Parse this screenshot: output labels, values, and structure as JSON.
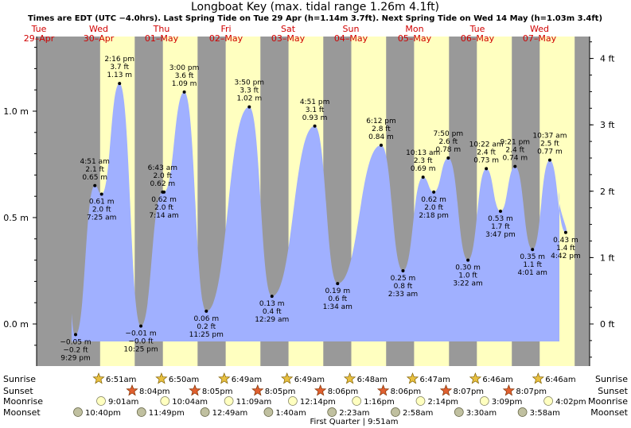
{
  "chart_data": {
    "type": "area",
    "title": "Longboat Key (max. tidal range 1.26m 4.1ft)",
    "subtitle": "Times are EDT (UTC −4.0hrs). Last Spring Tide on Tue 29 Apr (h=1.14m 3.7ft). Next Spring Tide on Wed 14 May (h=1.03m 3.4ft)",
    "y_left_ticks": [
      "0.0 m",
      "0.5 m",
      "1.0 m"
    ],
    "y_right_ticks": [
      "0 ft",
      "1 ft",
      "2 ft",
      "3 ft",
      "4 ft"
    ],
    "ylim_m": [
      -0.2,
      1.31
    ],
    "days": [
      {
        "dow": "Tue",
        "date": "29–Apr"
      },
      {
        "dow": "Wed",
        "date": "30–Apr"
      },
      {
        "dow": "Thu",
        "date": "01–May"
      },
      {
        "dow": "Fri",
        "date": "02–May"
      },
      {
        "dow": "Sat",
        "date": "03–May"
      },
      {
        "dow": "Sun",
        "date": "04–May"
      },
      {
        "dow": "Mon",
        "date": "05–May"
      },
      {
        "dow": "Tue",
        "date": "06–May"
      },
      {
        "dow": "Wed",
        "date": "07–May"
      }
    ],
    "tides": [
      {
        "t": "4/29 21:29",
        "m": -0.05,
        "ml": "−0.05 m",
        "ft": "−0.2 ft",
        "time": "9:29 pm",
        "pos": "below"
      },
      {
        "t": "4/30 04:51",
        "m": 0.65,
        "ml": "0.65 m",
        "ft": "2.1 ft",
        "time": "4:51 am",
        "pos": "above"
      },
      {
        "t": "4/30 07:25",
        "m": 0.61,
        "ml": "0.61 m",
        "ft": "2.0 ft",
        "time": "7:25 am",
        "pos": "below"
      },
      {
        "t": "4/30 14:16",
        "m": 1.13,
        "ml": "1.13 m",
        "ft": "3.7 ft",
        "time": "2:16 pm",
        "pos": "above"
      },
      {
        "t": "4/30 22:25",
        "m": -0.01,
        "ml": "−0.01 m",
        "ft": "−0.0 ft",
        "time": "10:25 pm",
        "pos": "below"
      },
      {
        "t": "5/1 06:43",
        "m": 0.62,
        "ml": "0.62 m",
        "ft": "2.0 ft",
        "time": "6:43 am",
        "pos": "above"
      },
      {
        "t": "5/1 07:14",
        "m": 0.62,
        "ml": "0.62 m",
        "ft": "2.0 ft",
        "time": "7:14 am",
        "pos": "below"
      },
      {
        "t": "5/1 15:00",
        "m": 1.09,
        "ml": "1.09 m",
        "ft": "3.6 ft",
        "time": "3:00 pm",
        "pos": "above"
      },
      {
        "t": "5/1 23:25",
        "m": 0.06,
        "ml": "0.06 m",
        "ft": "0.2 ft",
        "time": "11:25 pm",
        "pos": "below"
      },
      {
        "t": "5/2 15:50",
        "m": 1.02,
        "ml": "1.02 m",
        "ft": "3.3 ft",
        "time": "3:50 pm",
        "pos": "above"
      },
      {
        "t": "5/3 00:29",
        "m": 0.13,
        "ml": "0.13 m",
        "ft": "0.4 ft",
        "time": "12:29 am",
        "pos": "below"
      },
      {
        "t": "5/3 16:51",
        "m": 0.93,
        "ml": "0.93 m",
        "ft": "3.1 ft",
        "time": "4:51 pm",
        "pos": "above"
      },
      {
        "t": "5/4 01:34",
        "m": 0.19,
        "ml": "0.19 m",
        "ft": "0.6 ft",
        "time": "1:34 am",
        "pos": "below"
      },
      {
        "t": "5/4 18:12",
        "m": 0.84,
        "ml": "0.84 m",
        "ft": "2.8 ft",
        "time": "6:12 pm",
        "pos": "above"
      },
      {
        "t": "5/5 02:33",
        "m": 0.25,
        "ml": "0.25 m",
        "ft": "0.8 ft",
        "time": "2:33 am",
        "pos": "below"
      },
      {
        "t": "5/5 10:13",
        "m": 0.69,
        "ml": "0.69 m",
        "ft": "2.3 ft",
        "time": "10:13 am",
        "pos": "above"
      },
      {
        "t": "5/5 14:18",
        "m": 0.62,
        "ml": "0.62 m",
        "ft": "2.0 ft",
        "time": "2:18 pm",
        "pos": "below"
      },
      {
        "t": "5/5 19:50",
        "m": 0.78,
        "ml": "0.78 m",
        "ft": "2.6 ft",
        "time": "7:50 pm",
        "pos": "above"
      },
      {
        "t": "5/6 03:22",
        "m": 0.3,
        "ml": "0.30 m",
        "ft": "1.0 ft",
        "time": "3:22 am",
        "pos": "below"
      },
      {
        "t": "5/6 10:22",
        "m": 0.73,
        "ml": "0.73 m",
        "ft": "2.4 ft",
        "time": "10:22 am",
        "pos": "above"
      },
      {
        "t": "5/6 15:47",
        "m": 0.53,
        "ml": "0.53 m",
        "ft": "1.7 ft",
        "time": "3:47 pm",
        "pos": "below"
      },
      {
        "t": "5/6 21:21",
        "m": 0.74,
        "ml": "0.74 m",
        "ft": "2.4 ft",
        "time": "9:21 pm",
        "pos": "above"
      },
      {
        "t": "5/7 04:01",
        "m": 0.35,
        "ml": "0.35 m",
        "ft": "1.1 ft",
        "time": "4:01 am",
        "pos": "below"
      },
      {
        "t": "5/7 10:37",
        "m": 0.77,
        "ml": "0.77 m",
        "ft": "2.5 ft",
        "time": "10:37 am",
        "pos": "above"
      },
      {
        "t": "5/7 16:42",
        "m": 0.43,
        "ml": "0.43 m",
        "ft": "1.4 ft",
        "time": "4:42 pm",
        "pos": "below"
      }
    ],
    "sunrise": [
      "6:51am",
      "6:50am",
      "6:49am",
      "6:49am",
      "6:48am",
      "6:47am",
      "6:46am",
      "6:46am"
    ],
    "sunset": [
      "8:04pm",
      "8:05pm",
      "8:05pm",
      "8:06pm",
      "8:06pm",
      "8:07pm",
      "8:07pm"
    ],
    "moonrise": [
      "9:01am",
      "10:04am",
      "11:09am",
      "12:14pm",
      "1:16pm",
      "2:14pm",
      "3:09pm",
      "4:02pm"
    ],
    "moonset": [
      "10:40pm",
      "11:49pm",
      "12:49am",
      "1:40am",
      "2:23am",
      "2:58am",
      "3:30am",
      "3:58am"
    ],
    "row_labels": {
      "sunrise": "Sunrise",
      "sunset": "Sunset",
      "moonrise": "Moonrise",
      "moonset": "Moonset"
    },
    "moon_phase": "First Quarter | 9:51am",
    "colors": {
      "night": "#999999",
      "day": "#ffffc0",
      "water": "#a0b0ff",
      "day_label": "#d00000",
      "sun": "#ffa020",
      "moonrise": "#ffffc0",
      "moonset": "#c0c0a0"
    }
  }
}
